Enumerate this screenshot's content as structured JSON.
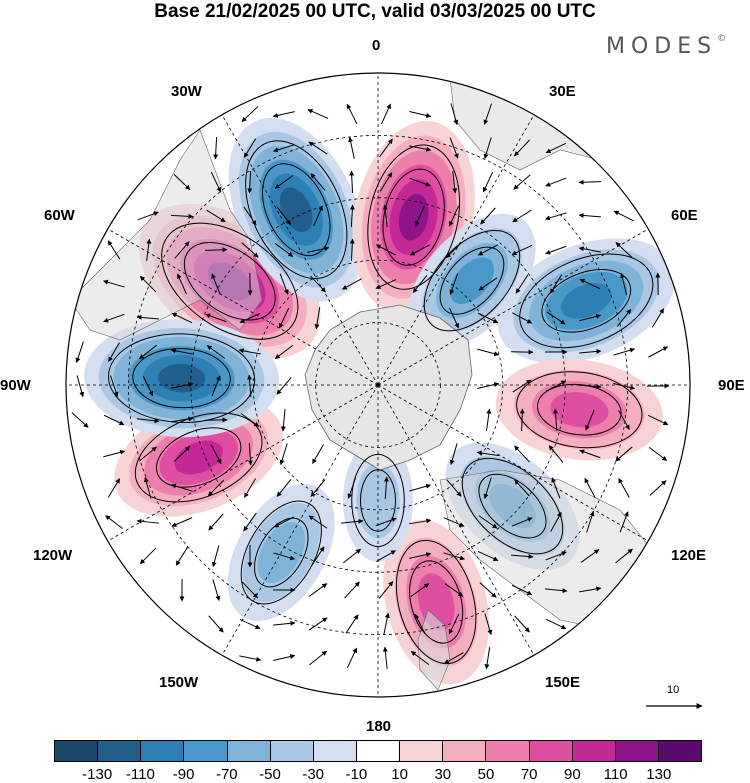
{
  "title": "Base 21/02/2025 00 UTC, valid 03/03/2025 00 UTC",
  "brand": {
    "name": "MODES",
    "mark": "©"
  },
  "longitude_labels": {
    "lon_0": "0",
    "lon_30e": "30E",
    "lon_60e": "60E",
    "lon_90e": "90E",
    "lon_120e": "120E",
    "lon_150e": "150E",
    "lon_180": "180",
    "lon_150w": "150W",
    "lon_120w": "120W",
    "lon_90w": "90W",
    "lon_60w": "60W",
    "lon_30w": "30W"
  },
  "vector_reference": {
    "label": "10"
  },
  "colorbar": {
    "tick_labels": [
      "-130",
      "-110",
      "-90",
      "-70",
      "-50",
      "-30",
      "-10",
      "10",
      "30",
      "50",
      "70",
      "90",
      "110",
      "130"
    ],
    "colors": [
      "#1b4a6b",
      "#225f8c",
      "#2e7fb4",
      "#4a98c8",
      "#7fb3d8",
      "#aac8e4",
      "#d4def0",
      "#ffffff",
      "#f8d3d6",
      "#f3aebf",
      "#ec7fab",
      "#df4fa1",
      "#c42896",
      "#8e1487",
      "#5a0b6d"
    ]
  },
  "anomaly_centers": [
    {
      "name": "center-60w-positive",
      "lon_deg": -55,
      "colat_frac": 0.58,
      "value": 120
    },
    {
      "name": "center-30w-negative",
      "lon_deg": -25,
      "colat_frac": 0.62,
      "value": -110
    },
    {
      "name": "center-10e-positive",
      "lon_deg": 12,
      "colat_frac": 0.55,
      "value": 110
    },
    {
      "name": "center-40e-negative",
      "lon_deg": 42,
      "colat_frac": 0.45,
      "value": -70
    },
    {
      "name": "center-65e-negative",
      "lon_deg": 68,
      "colat_frac": 0.72,
      "value": -100
    },
    {
      "name": "center-95e-positive",
      "lon_deg": 97,
      "colat_frac": 0.65,
      "value": 80
    },
    {
      "name": "center-130e-negative",
      "lon_deg": 132,
      "colat_frac": 0.58,
      "value": -70
    },
    {
      "name": "center-160e-positive",
      "lon_deg": 165,
      "colat_frac": 0.72,
      "value": 80
    },
    {
      "name": "center-180-negative",
      "lon_deg": 180,
      "colat_frac": 0.37,
      "value": -30
    },
    {
      "name": "center-145w-negative",
      "lon_deg": -150,
      "colat_frac": 0.62,
      "value": -60
    },
    {
      "name": "center-115w-positive",
      "lon_deg": -112,
      "colat_frac": 0.62,
      "value": 90
    },
    {
      "name": "center-90w-negative",
      "lon_deg": -88,
      "colat_frac": 0.63,
      "value": -110
    }
  ]
}
